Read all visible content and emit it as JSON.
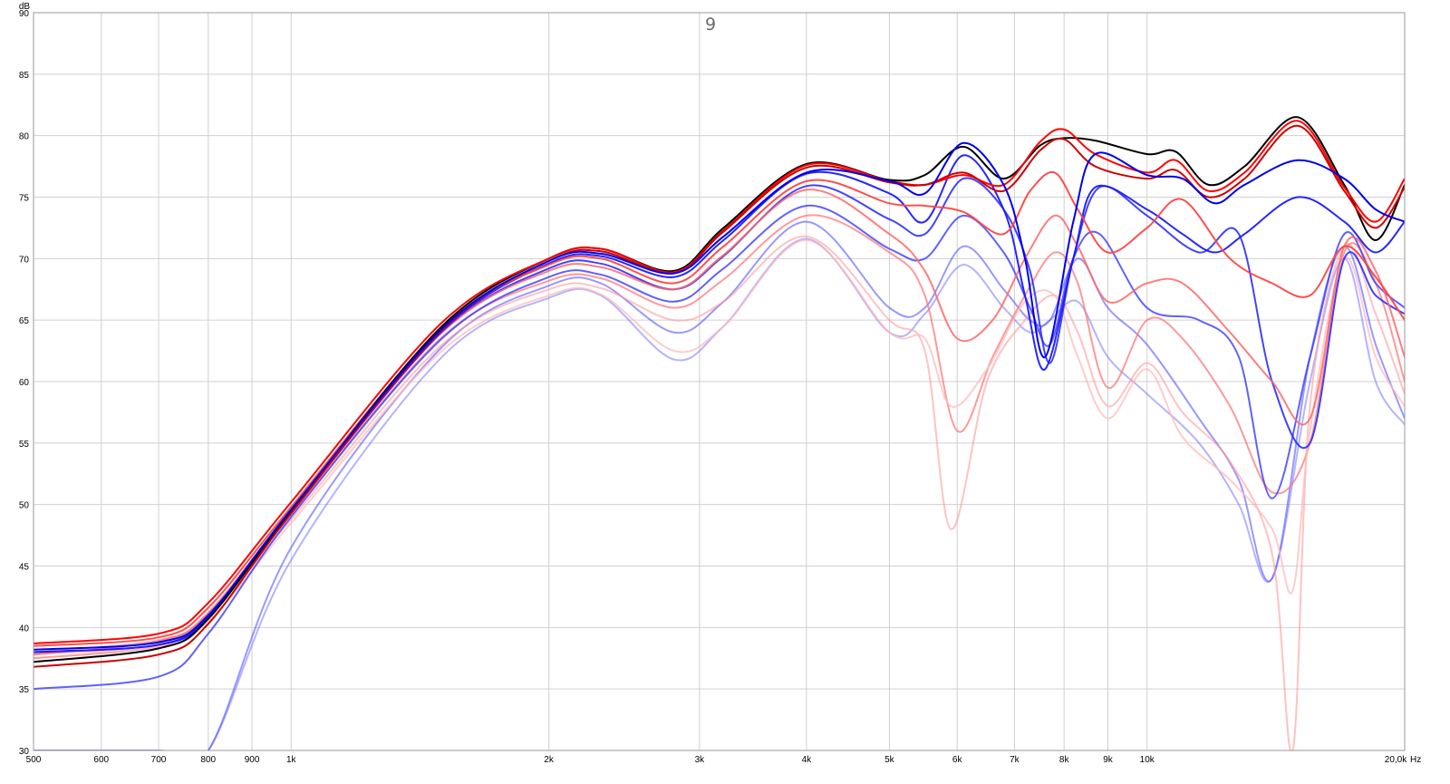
{
  "chart_data": {
    "type": "line",
    "title": "9",
    "xlabel": "Hz",
    "ylabel": "dB",
    "x_scale": "log",
    "xlim": [
      500,
      20000
    ],
    "ylim": [
      30,
      90
    ],
    "grid": true,
    "legend": "none",
    "x_ticks": [
      {
        "value": 500,
        "label": "500"
      },
      {
        "value": 600,
        "label": "600"
      },
      {
        "value": 700,
        "label": "700"
      },
      {
        "value": 800,
        "label": "800"
      },
      {
        "value": 900,
        "label": "900"
      },
      {
        "value": 1000,
        "label": "1k"
      },
      {
        "value": 2000,
        "label": "2k"
      },
      {
        "value": 3000,
        "label": "3k"
      },
      {
        "value": 4000,
        "label": "4k"
      },
      {
        "value": 5000,
        "label": "5k"
      },
      {
        "value": 6000,
        "label": "6k"
      },
      {
        "value": 7000,
        "label": "7k"
      },
      {
        "value": 8000,
        "label": "8k"
      },
      {
        "value": 9000,
        "label": "9k"
      },
      {
        "value": 10000,
        "label": "10k"
      },
      {
        "value": 20000,
        "label": "20,0k"
      }
    ],
    "y_ticks": [
      {
        "value": 30,
        "label": "30"
      },
      {
        "value": 35,
        "label": "35"
      },
      {
        "value": 40,
        "label": "40"
      },
      {
        "value": 45,
        "label": "45"
      },
      {
        "value": 50,
        "label": "50"
      },
      {
        "value": 55,
        "label": "55"
      },
      {
        "value": 60,
        "label": "60"
      },
      {
        "value": 65,
        "label": "65"
      },
      {
        "value": 70,
        "label": "70"
      },
      {
        "value": 75,
        "label": "75"
      },
      {
        "value": 80,
        "label": "80"
      },
      {
        "value": 85,
        "label": "85"
      },
      {
        "value": 90,
        "label": "90"
      }
    ],
    "series": [
      {
        "color": "#000000",
        "opacity": 1,
        "x": [
          500,
          700,
          800,
          1000,
          1500,
          2000,
          2300,
          2800,
          3200,
          4000,
          5000,
          5500,
          6100,
          6800,
          7500,
          8000,
          8700,
          10000,
          10800,
          11800,
          13000,
          15000,
          17000,
          18500,
          20000
        ],
        "y": [
          37.2,
          38.3,
          40.7,
          49.5,
          64.5,
          70.0,
          70.8,
          69.0,
          72.5,
          77.7,
          76.4,
          76.8,
          79.1,
          76.5,
          79.2,
          79.8,
          79.6,
          78.5,
          78.7,
          76.0,
          77.5,
          81.5,
          76.0,
          71.5,
          76.0
        ]
      },
      {
        "color": "#ff0000",
        "opacity": 1,
        "x": [
          500,
          700,
          800,
          1000,
          1500,
          2000,
          2300,
          2800,
          3200,
          4000,
          5000,
          5500,
          6100,
          6800,
          7500,
          8000,
          8700,
          10000,
          10800,
          11800,
          13000,
          15000,
          17000,
          18500,
          20000
        ],
        "y": [
          38.7,
          39.5,
          42.0,
          50.2,
          64.8,
          70.0,
          70.8,
          68.9,
          72.3,
          77.6,
          76.3,
          76.0,
          76.8,
          76.0,
          79.5,
          80.5,
          78.5,
          77.0,
          78.0,
          75.5,
          77.0,
          81.2,
          75.8,
          73.0,
          76.5
        ]
      },
      {
        "color": "#cc0000",
        "opacity": 1,
        "x": [
          500,
          700,
          800,
          1000,
          1500,
          2000,
          2300,
          2800,
          3200,
          4000,
          5000,
          5500,
          6100,
          6800,
          7500,
          8000,
          8700,
          10000,
          10800,
          11800,
          13000,
          15000,
          17000,
          18500,
          20000
        ],
        "y": [
          36.8,
          37.8,
          40.3,
          49.3,
          64.2,
          69.8,
          70.6,
          68.8,
          72.2,
          77.4,
          76.2,
          76.0,
          77.0,
          75.5,
          78.8,
          79.7,
          77.5,
          76.5,
          77.2,
          75.0,
          76.5,
          80.8,
          75.5,
          72.5,
          75.8
        ]
      },
      {
        "color": "#0000ee",
        "opacity": 1,
        "x": [
          500,
          700,
          800,
          1000,
          1500,
          2000,
          2300,
          2800,
          3200,
          4000,
          5000,
          5500,
          6100,
          6800,
          7200,
          7600,
          8200,
          8700,
          10000,
          11000,
          12000,
          13000,
          15000,
          17000,
          18500,
          20000
        ],
        "y": [
          38.2,
          38.8,
          41.0,
          49.6,
          64.3,
          69.8,
          70.4,
          68.8,
          71.8,
          77.0,
          76.3,
          75.3,
          79.4,
          76.0,
          70.0,
          62.0,
          73.0,
          78.5,
          76.8,
          76.5,
          74.5,
          76.0,
          78.0,
          76.5,
          74.0,
          73.0
        ]
      },
      {
        "color": "#1a1aff",
        "opacity": 0.95,
        "x": [
          500,
          700,
          800,
          1000,
          1500,
          2000,
          2300,
          2800,
          3200,
          4000,
          5000,
          5500,
          6100,
          6800,
          7200,
          7600,
          8200,
          8700,
          10000,
          11000,
          12000,
          13000,
          15000,
          17000,
          18500,
          20000
        ],
        "y": [
          38.0,
          38.6,
          40.8,
          49.4,
          64.1,
          69.6,
          70.2,
          68.5,
          71.5,
          76.9,
          75.3,
          73.0,
          78.4,
          74.0,
          67.0,
          61.0,
          70.0,
          75.8,
          74.0,
          72.0,
          70.5,
          72.0,
          75.0,
          73.0,
          70.5,
          73.0
        ]
      },
      {
        "color": "#ff4444",
        "opacity": 0.95,
        "x": [
          500,
          700,
          800,
          1000,
          1500,
          2000,
          2300,
          2800,
          3200,
          4000,
          5000,
          5500,
          6100,
          6800,
          7300,
          7800,
          8300,
          9000,
          10000,
          11000,
          12500,
          14000,
          15500,
          17000,
          18500,
          20000
        ],
        "y": [
          38.5,
          39.2,
          41.6,
          49.8,
          64.4,
          69.5,
          70.0,
          68.0,
          71.0,
          76.3,
          74.5,
          74.3,
          73.8,
          72.0,
          75.5,
          77.0,
          74.0,
          70.5,
          72.5,
          74.8,
          70.0,
          68.0,
          67.0,
          71.0,
          68.5,
          65.0
        ]
      },
      {
        "color": "#2222ff",
        "opacity": 0.85,
        "x": [
          500,
          700,
          800,
          1000,
          1500,
          2000,
          2300,
          2800,
          3200,
          4000,
          5000,
          5500,
          6100,
          6800,
          7300,
          7700,
          8200,
          8800,
          10000,
          11500,
          12800,
          14000,
          15500,
          17000,
          18500,
          20000
        ],
        "y": [
          38.0,
          38.6,
          40.9,
          49.4,
          64.0,
          69.2,
          69.6,
          67.5,
          70.2,
          75.9,
          73.2,
          72.0,
          76.5,
          74.0,
          69.0,
          61.5,
          70.0,
          75.8,
          73.5,
          70.5,
          72.0,
          60.0,
          55.0,
          70.0,
          67.0,
          65.5
        ]
      },
      {
        "color": "#ff6666",
        "opacity": 0.85,
        "x": [
          500,
          700,
          800,
          1000,
          1500,
          2000,
          2300,
          2800,
          3200,
          4000,
          5000,
          5500,
          6000,
          6600,
          7200,
          7800,
          8300,
          9000,
          10000,
          11000,
          12500,
          14000,
          15500,
          17000,
          18500,
          20000
        ],
        "y": [
          37.8,
          38.9,
          41.2,
          49.5,
          64.0,
          69.0,
          69.3,
          67.5,
          70.3,
          75.6,
          72.0,
          69.0,
          63.5,
          65.0,
          70.0,
          73.5,
          71.0,
          66.5,
          68.0,
          68.0,
          64.0,
          60.0,
          57.0,
          71.0,
          69.0,
          62.0
        ]
      },
      {
        "color": "#3a3aff",
        "opacity": 0.8,
        "x": [
          500,
          700,
          800,
          1000,
          1500,
          2000,
          2300,
          2800,
          3200,
          4000,
          5000,
          5500,
          6100,
          6800,
          7300,
          7700,
          8200,
          8800,
          10000,
          11500,
          12800,
          14000,
          15500,
          17000,
          18500,
          20000
        ],
        "y": [
          35.0,
          36.0,
          39.5,
          49.0,
          63.5,
          68.5,
          68.7,
          66.5,
          69.2,
          74.3,
          70.8,
          70.0,
          73.5,
          70.5,
          66.0,
          63.0,
          70.0,
          72.0,
          66.0,
          65.0,
          62.0,
          50.5,
          62.0,
          72.0,
          68.0,
          66.0
        ]
      },
      {
        "color": "#ff7777",
        "opacity": 0.75,
        "x": [
          500,
          700,
          800,
          1000,
          1500,
          2000,
          2300,
          2800,
          3200,
          4000,
          5000,
          5500,
          6000,
          6600,
          7200,
          7800,
          8300,
          9000,
          10000,
          11000,
          12500,
          14000,
          15500,
          17000,
          18500,
          20000
        ],
        "y": [
          37.5,
          38.5,
          40.9,
          49.2,
          63.6,
          68.2,
          68.4,
          66.0,
          68.3,
          73.5,
          70.5,
          67.0,
          56.0,
          62.0,
          67.0,
          70.5,
          68.0,
          59.5,
          65.0,
          63.5,
          58.0,
          51.0,
          55.0,
          70.5,
          68.0,
          60.0
        ]
      },
      {
        "color": "#5555ff",
        "opacity": 0.6,
        "x": [
          500,
          700,
          800,
          1000,
          1500,
          2000,
          2300,
          2800,
          3200,
          4000,
          5000,
          5500,
          6100,
          6800,
          7300,
          7700,
          8300,
          9000,
          10000,
          11500,
          12800,
          14000,
          15500,
          17000,
          18500,
          20000
        ],
        "y": [
          30.0,
          30.0,
          30.0,
          46.5,
          62.8,
          67.8,
          68.0,
          64.0,
          66.5,
          73.0,
          66.0,
          66.0,
          71.0,
          67.5,
          65.0,
          65.0,
          70.0,
          66.0,
          63.0,
          57.0,
          52.0,
          44.0,
          62.0,
          71.0,
          63.0,
          57.0
        ]
      },
      {
        "color": "#ff9999",
        "opacity": 0.6,
        "x": [
          500,
          700,
          800,
          1000,
          1500,
          2000,
          2300,
          2800,
          3200,
          4000,
          5000,
          5500,
          5900,
          6500,
          7200,
          7800,
          8300,
          9000,
          10000,
          11000,
          12500,
          14000,
          14800,
          15500,
          17000,
          18500,
          20000
        ],
        "y": [
          38.0,
          39.0,
          41.0,
          48.8,
          63.0,
          67.5,
          67.6,
          65.0,
          66.5,
          71.8,
          65.0,
          62.5,
          48.0,
          60.0,
          65.0,
          67.0,
          64.0,
          58.0,
          61.5,
          57.5,
          53.5,
          46.0,
          30.0,
          58.0,
          71.0,
          65.5,
          59.0
        ]
      },
      {
        "color": "#7777ff",
        "opacity": 0.55,
        "x": [
          500,
          700,
          800,
          1000,
          1500,
          2000,
          2300,
          2800,
          3200,
          4000,
          5000,
          5500,
          6100,
          6800,
          7300,
          7700,
          8300,
          9000,
          10000,
          11500,
          12800,
          14000,
          15500,
          17000,
          18500,
          20000
        ],
        "y": [
          30.0,
          30.0,
          30.0,
          45.5,
          62.0,
          66.8,
          67.0,
          61.8,
          64.5,
          71.6,
          64.0,
          65.5,
          69.5,
          66.0,
          64.0,
          65.0,
          66.5,
          62.0,
          59.0,
          55.0,
          50.0,
          44.0,
          60.0,
          70.0,
          60.0,
          56.5
        ]
      },
      {
        "color": "#ffbbbb",
        "opacity": 0.75,
        "x": [
          500,
          700,
          800,
          1000,
          1500,
          2000,
          2300,
          2800,
          3200,
          4000,
          5000,
          5500,
          5900,
          6500,
          7200,
          7800,
          8300,
          9000,
          10000,
          11000,
          12500,
          14000,
          14800,
          15500,
          17000,
          18500,
          20000
        ],
        "y": [
          37.9,
          38.4,
          40.5,
          48.5,
          62.5,
          67.0,
          67.1,
          62.5,
          64.5,
          71.5,
          64.0,
          63.5,
          58.0,
          61.0,
          66.5,
          67.0,
          62.0,
          57.0,
          61.0,
          55.5,
          52.0,
          48.0,
          43.0,
          56.0,
          70.0,
          62.0,
          58.0
        ]
      }
    ]
  }
}
